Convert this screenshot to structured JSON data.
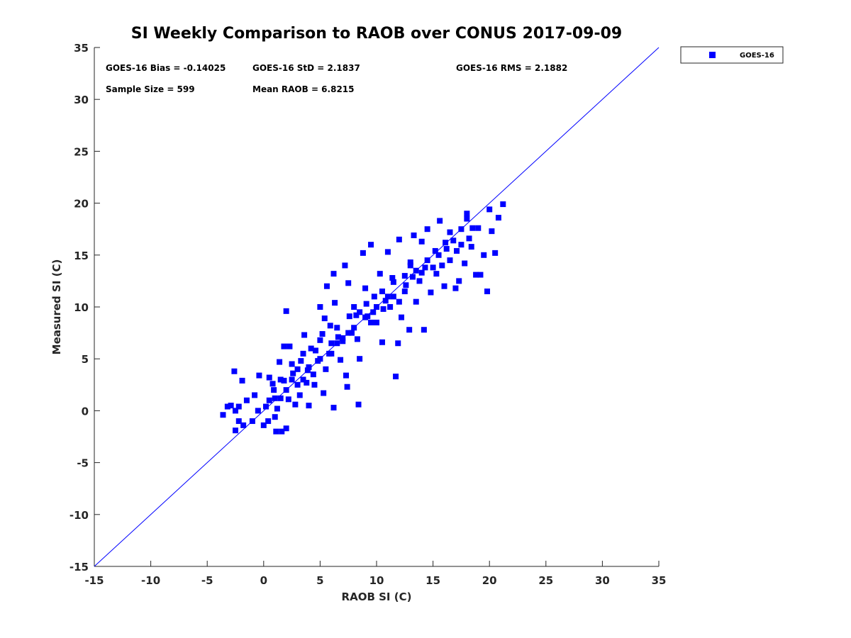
{
  "chart_data": {
    "type": "scatter",
    "title": "SI Weekly Comparison to RAOB over CONUS 2017-09-09",
    "xlabel": "RAOB SI (C)",
    "ylabel": "Measured SI (C)",
    "xlim": [
      -15,
      35
    ],
    "ylim": [
      -15,
      35
    ],
    "xticks": [
      "-15",
      "-10",
      "-5",
      "0",
      "5",
      "10",
      "15",
      "20",
      "25",
      "30",
      "35"
    ],
    "yticks": [
      "-15",
      "-10",
      "-5",
      "0",
      "5",
      "10",
      "15",
      "20",
      "25",
      "30",
      "35"
    ],
    "grid": false,
    "legend": {
      "position": "outside-top-right",
      "entries": [
        "GOES-16"
      ]
    },
    "annotations": [
      "GOES-16 Bias = -0.14025",
      "GOES-16 StD = 2.1837",
      "GOES-16 RMS = 2.1882",
      "Sample Size = 599",
      "Mean RAOB = 6.8215"
    ],
    "reference_line": {
      "type": "y=x",
      "color": "#0000ff"
    },
    "series": [
      {
        "name": "GOES-16",
        "color": "#0000ff",
        "marker": "square",
        "points": [
          [
            -3.6,
            -0.4
          ],
          [
            -3.2,
            0.4
          ],
          [
            -2.9,
            0.5
          ],
          [
            -2.6,
            3.8
          ],
          [
            -2.5,
            -1.9
          ],
          [
            -2.5,
            0
          ],
          [
            -2.2,
            0.4
          ],
          [
            -1.9,
            2.9
          ],
          [
            -1.8,
            -1.4
          ],
          [
            -2.2,
            -1
          ],
          [
            -1.5,
            1
          ],
          [
            -1,
            -1
          ],
          [
            -0.8,
            1.5
          ],
          [
            -0.5,
            0
          ],
          [
            -0.4,
            3.4
          ],
          [
            0,
            -1.4
          ],
          [
            0.4,
            -1
          ],
          [
            0.5,
            3.2
          ],
          [
            0.5,
            1
          ],
          [
            0.9,
            2
          ],
          [
            1,
            -0.6
          ],
          [
            1.1,
            -2
          ],
          [
            1.4,
            4.7
          ],
          [
            1.5,
            1.2
          ],
          [
            1.6,
            -2
          ],
          [
            1.8,
            6.2
          ],
          [
            2,
            9.6
          ],
          [
            2,
            -1.7
          ],
          [
            2.3,
            6.2
          ],
          [
            2.5,
            3
          ],
          [
            2.8,
            0.6
          ],
          [
            3,
            4
          ],
          [
            3.2,
            1.5
          ],
          [
            3.5,
            5.5
          ],
          [
            3.6,
            7.3
          ],
          [
            3.8,
            2.7
          ],
          [
            4,
            0.5
          ],
          [
            4.2,
            6
          ],
          [
            4.4,
            3.5
          ],
          [
            4.8,
            4.8
          ],
          [
            5,
            10
          ],
          [
            5,
            6.8
          ],
          [
            5.3,
            1.7
          ],
          [
            5.4,
            8.9
          ],
          [
            5.6,
            12
          ],
          [
            5.8,
            5.5
          ],
          [
            6,
            6.5
          ],
          [
            6.2,
            13.2
          ],
          [
            6.2,
            0.3
          ],
          [
            6.3,
            10.4
          ],
          [
            6.5,
            8
          ],
          [
            6.8,
            4.9
          ],
          [
            7,
            6.7
          ],
          [
            7.2,
            14
          ],
          [
            7.3,
            3.4
          ],
          [
            7.4,
            2.3
          ],
          [
            7.5,
            12.3
          ],
          [
            7.8,
            7.5
          ],
          [
            8,
            10
          ],
          [
            8.2,
            9.2
          ],
          [
            8.4,
            0.6
          ],
          [
            8.5,
            5
          ],
          [
            8.8,
            15.2
          ],
          [
            9,
            11.8
          ],
          [
            9.2,
            9.1
          ],
          [
            9.5,
            16
          ],
          [
            9.8,
            11
          ],
          [
            10,
            8.5
          ],
          [
            10.3,
            13.2
          ],
          [
            10.5,
            6.6
          ],
          [
            10.6,
            9.8
          ],
          [
            11,
            15.3
          ],
          [
            11,
            11
          ],
          [
            11.2,
            10
          ],
          [
            11.5,
            12.4
          ],
          [
            11.7,
            3.3
          ],
          [
            11.9,
            6.5
          ],
          [
            12,
            16.5
          ],
          [
            12.2,
            9
          ],
          [
            12.5,
            11.5
          ],
          [
            12.9,
            7.8
          ],
          [
            13,
            14.3
          ],
          [
            13.3,
            16.9
          ],
          [
            13.5,
            10.5
          ],
          [
            13.8,
            12.5
          ],
          [
            14,
            13.3
          ],
          [
            14.2,
            7.8
          ],
          [
            14.5,
            17.5
          ],
          [
            14.8,
            11.4
          ],
          [
            15,
            13.8
          ],
          [
            15.2,
            15.4
          ],
          [
            15.6,
            18.3
          ],
          [
            15.8,
            14
          ],
          [
            16,
            12
          ],
          [
            16.2,
            15.6
          ],
          [
            16.5,
            17.2
          ],
          [
            16.8,
            16.4
          ],
          [
            17,
            11.8
          ],
          [
            17.3,
            12.5
          ],
          [
            17.5,
            17.5
          ],
          [
            17.8,
            14.2
          ],
          [
            18,
            19
          ],
          [
            18.2,
            16.6
          ],
          [
            18.5,
            17.6
          ],
          [
            18.8,
            13.1
          ],
          [
            19,
            17.6
          ],
          [
            19.2,
            13.1
          ],
          [
            19.5,
            15
          ],
          [
            19.8,
            11.5
          ],
          [
            20,
            19.4
          ],
          [
            20.2,
            17.3
          ],
          [
            20.5,
            15.2
          ],
          [
            20.8,
            18.6
          ],
          [
            21.2,
            19.9
          ],
          [
            18,
            18.5
          ],
          [
            14,
            16.3
          ],
          [
            13,
            14
          ],
          [
            12,
            10.5
          ],
          [
            10,
            10
          ],
          [
            9,
            9
          ],
          [
            8,
            8
          ],
          [
            7,
            7
          ],
          [
            6,
            5.5
          ],
          [
            5,
            5
          ],
          [
            4,
            4.2
          ],
          [
            3,
            2.5
          ],
          [
            2,
            2
          ],
          [
            1,
            1.2
          ],
          [
            0.2,
            0.4
          ],
          [
            1.5,
            3
          ],
          [
            2.5,
            4.5
          ],
          [
            3.5,
            3
          ],
          [
            4.5,
            2.5
          ],
          [
            5.5,
            4
          ],
          [
            6.5,
            6.5
          ],
          [
            7.5,
            7.5
          ],
          [
            8.5,
            9.5
          ],
          [
            9.5,
            8.5
          ],
          [
            10.5,
            11.5
          ],
          [
            11.5,
            11
          ],
          [
            12.5,
            13
          ],
          [
            13.5,
            13.5
          ],
          [
            14.5,
            14.5
          ],
          [
            15.5,
            15
          ],
          [
            16.5,
            14.5
          ],
          [
            17.5,
            16
          ],
          [
            0.8,
            2.6
          ],
          [
            1.2,
            0.2
          ],
          [
            1.8,
            2.9
          ],
          [
            2.2,
            1.1
          ],
          [
            2.6,
            3.6
          ],
          [
            3.3,
            4.8
          ],
          [
            3.9,
            3.9
          ],
          [
            4.6,
            5.8
          ],
          [
            5.2,
            7.4
          ],
          [
            5.9,
            8.2
          ],
          [
            6.6,
            7.1
          ],
          [
            7.6,
            9.1
          ],
          [
            8.3,
            6.9
          ],
          [
            9.1,
            10.3
          ],
          [
            9.7,
            9.5
          ],
          [
            10.8,
            10.6
          ],
          [
            11.4,
            12.8
          ],
          [
            12.6,
            12.1
          ],
          [
            13.2,
            12.9
          ],
          [
            14.3,
            13.8
          ],
          [
            15.3,
            13.2
          ],
          [
            16.1,
            16.2
          ],
          [
            17.1,
            15.4
          ],
          [
            18.4,
            15.8
          ]
        ]
      }
    ]
  }
}
